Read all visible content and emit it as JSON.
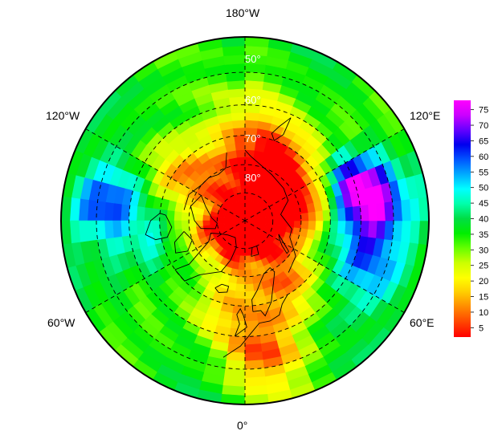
{
  "map": {
    "projection": "north-polar-stereographic",
    "longitude_labels": {
      "top": "180°W",
      "bottom": "0°",
      "upper_left": "120°W",
      "upper_right": "120°E",
      "lower_left": "60°W",
      "lower_right": "60°E"
    },
    "latitude_labels": [
      "50°",
      "60°",
      "70°",
      "80°"
    ],
    "graticule_style": "dashed",
    "colorbar": {
      "ticks": [
        "75",
        "70",
        "65",
        "60",
        "55",
        "50",
        "45",
        "40",
        "35",
        "30",
        "25",
        "20",
        "15",
        "10",
        "5"
      ],
      "min": 2,
      "max": 78,
      "colors": [
        "#ff0000",
        "#ff4400",
        "#ff8800",
        "#ffcc00",
        "#ffff00",
        "#ccff00",
        "#66ff00",
        "#00ee00",
        "#00dd44",
        "#00ffaa",
        "#00ffff",
        "#00aaff",
        "#0055ff",
        "#0000ee",
        "#6600ff",
        "#cc00ff",
        "#ff00ff"
      ]
    }
  }
}
